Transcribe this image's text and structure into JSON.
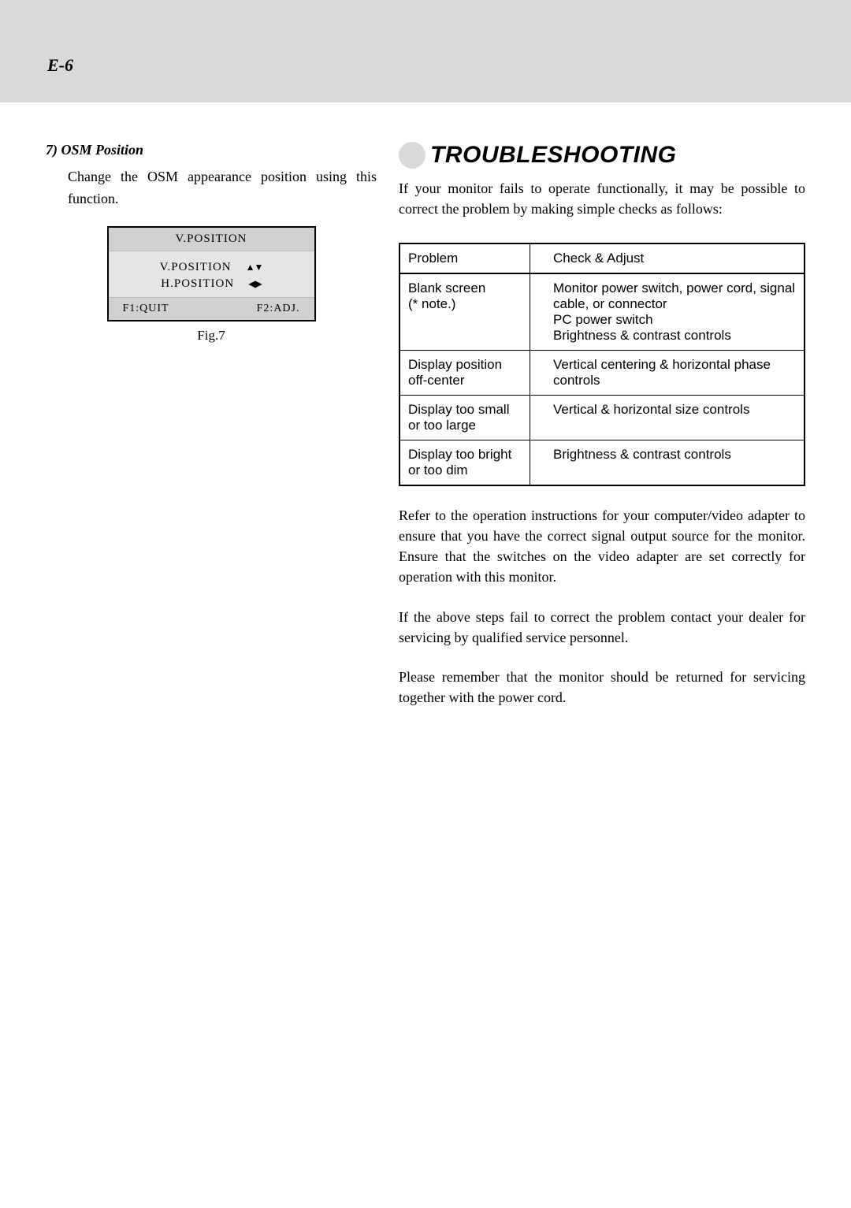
{
  "page_number": "E-6",
  "left": {
    "heading": "7) OSM Position",
    "description": "Change the OSM appearance position using this function.",
    "osm": {
      "title": "V.POSITION",
      "row1_label": "V.POSITION",
      "row1_arrows": "▲▼",
      "row2_label": "H.POSITION",
      "row2_arrows": "◀▶",
      "footer_left": "F1:QUIT",
      "footer_right": "F2:ADJ."
    },
    "caption": "Fig.7"
  },
  "right": {
    "heading": "TROUBLESHOOTING",
    "intro": "If your monitor fails to operate functionally, it may be possible to correct the problem by making simple checks as follows:",
    "table": {
      "header_problem": "Problem",
      "header_check": "Check & Adjust",
      "rows": [
        {
          "problem": "Blank screen\n(* note.)",
          "check": "Monitor power switch, power cord, signal cable, or connector\nPC power switch\nBrightness & contrast controls"
        },
        {
          "problem": "Display position off-center",
          "check": "Vertical centering & horizontal phase controls"
        },
        {
          "problem": "Display too small or too large",
          "check": "Vertical & horizontal size controls"
        },
        {
          "problem": "Display too bright or too dim",
          "check": "Brightness & contrast controls"
        }
      ]
    },
    "para1": "Refer to the operation instructions for your computer/video adapter to ensure that you have the correct signal output source for the monitor. Ensure that the switches on the video adapter are set correctly for operation with this monitor.",
    "para2": "If the above steps fail to correct the  problem  contact your  dealer for servicing by qualified service personnel.",
    "para3": "Please remember that the monitor should be returned for servicing together with the power cord."
  },
  "colors": {
    "band_bg": "#d9d9d9",
    "osm_bg": "#e5e5e5",
    "osm_title_bg": "#d0d0d0"
  }
}
